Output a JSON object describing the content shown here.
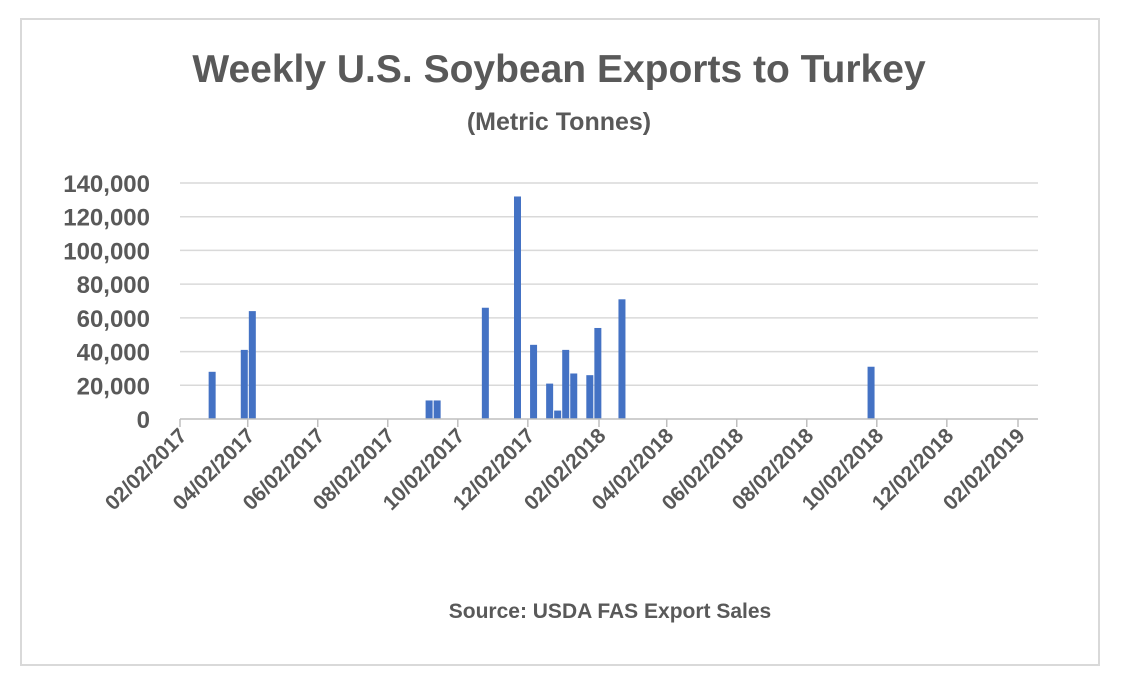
{
  "chart_data": {
    "type": "bar",
    "title": "Weekly U.S. Soybean Exports to Turkey",
    "subtitle": "(Metric Tonnes)",
    "source": "Source: USDA FAS Export Sales",
    "xlabel": "",
    "ylabel": "",
    "xlim": [
      "2017-02-02",
      "2019-02-02"
    ],
    "ylim": [
      0,
      140000
    ],
    "y_ticks": [
      0,
      20000,
      40000,
      60000,
      80000,
      100000,
      120000,
      140000
    ],
    "y_tick_labels": [
      "0",
      "20,000",
      "40,000",
      "60,000",
      "80,000",
      "100,000",
      "120,000",
      "140,000"
    ],
    "x_ticks": [
      "2017-02-02",
      "2017-04-02",
      "2017-06-02",
      "2017-08-02",
      "2017-10-02",
      "2017-12-02",
      "2018-02-02",
      "2018-04-02",
      "2018-06-02",
      "2018-08-02",
      "2018-10-02",
      "2018-12-02",
      "2019-02-02"
    ],
    "x_tick_labels": [
      "02/02/2017",
      "04/02/2017",
      "06/02/2017",
      "08/02/2017",
      "10/02/2017",
      "12/02/2017",
      "02/02/2018",
      "04/02/2018",
      "06/02/2018",
      "08/02/2018",
      "10/02/2018",
      "12/02/2018",
      "02/02/2019"
    ],
    "grid": true,
    "bar_color": "#4472c4",
    "points": [
      {
        "date": "2017-03-02",
        "value": 28000
      },
      {
        "date": "2017-03-30",
        "value": 41000
      },
      {
        "date": "2017-04-06",
        "value": 64000
      },
      {
        "date": "2017-09-07",
        "value": 11000
      },
      {
        "date": "2017-09-14",
        "value": 11000
      },
      {
        "date": "2017-10-26",
        "value": 66000
      },
      {
        "date": "2017-11-23",
        "value": 132000
      },
      {
        "date": "2017-12-07",
        "value": 44000
      },
      {
        "date": "2017-12-21",
        "value": 21000
      },
      {
        "date": "2017-12-28",
        "value": 5000
      },
      {
        "date": "2018-01-04",
        "value": 41000
      },
      {
        "date": "2018-01-11",
        "value": 27000
      },
      {
        "date": "2018-01-25",
        "value": 26000
      },
      {
        "date": "2018-02-01",
        "value": 54000
      },
      {
        "date": "2018-02-22",
        "value": 71000
      },
      {
        "date": "2018-09-27",
        "value": 31000
      }
    ]
  }
}
